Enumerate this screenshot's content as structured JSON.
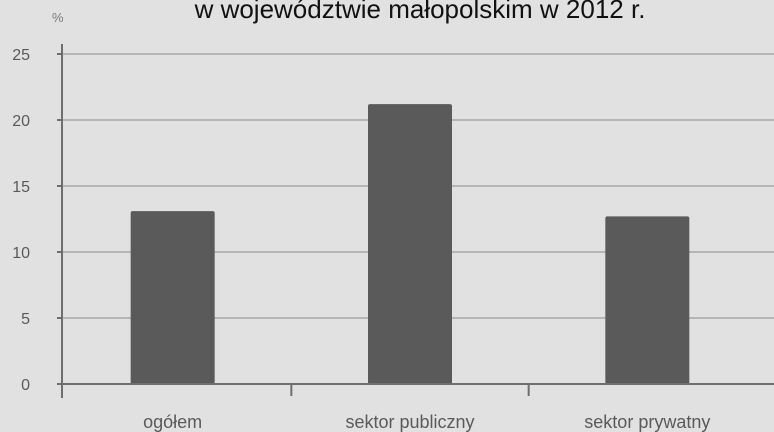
{
  "chart_data": {
    "type": "bar",
    "title": "w województwie małopolskim w 2012 r.",
    "ylabel": "%",
    "xlabel": "",
    "categories": [
      "ogółem",
      "sektor publiczny",
      "sektor prywatny"
    ],
    "values": [
      13.1,
      21.2,
      12.7
    ],
    "ylim": [
      0,
      25
    ],
    "yticks": [
      0,
      5,
      10,
      15,
      20,
      25
    ],
    "grid": true,
    "legend": "none",
    "colors": {
      "bar": "#5a5a5a",
      "background": "#e1e1e1"
    }
  }
}
